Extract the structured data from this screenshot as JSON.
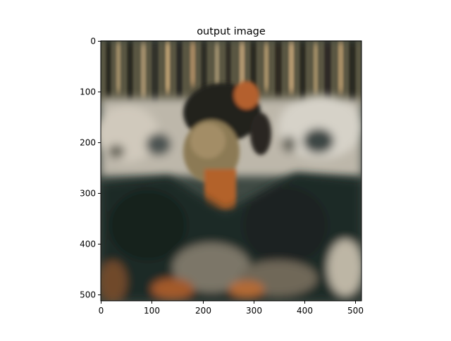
{
  "chart_data": {
    "type": "image",
    "title": "output image",
    "xlabel": "",
    "ylabel": "",
    "image_size": [
      512,
      512
    ],
    "xlim": [
      0,
      512
    ],
    "ylim": [
      512,
      0
    ],
    "x_ticks": [
      0,
      100,
      200,
      300,
      400,
      500
    ],
    "y_ticks": [
      0,
      100,
      200,
      300,
      400,
      500
    ],
    "grid": false,
    "colors": {
      "background": "#ffffff",
      "axes": "#000000",
      "image_dark": "#1f2a28",
      "image_light": "#c9c6bd",
      "image_accent": "#c0652b"
    }
  }
}
